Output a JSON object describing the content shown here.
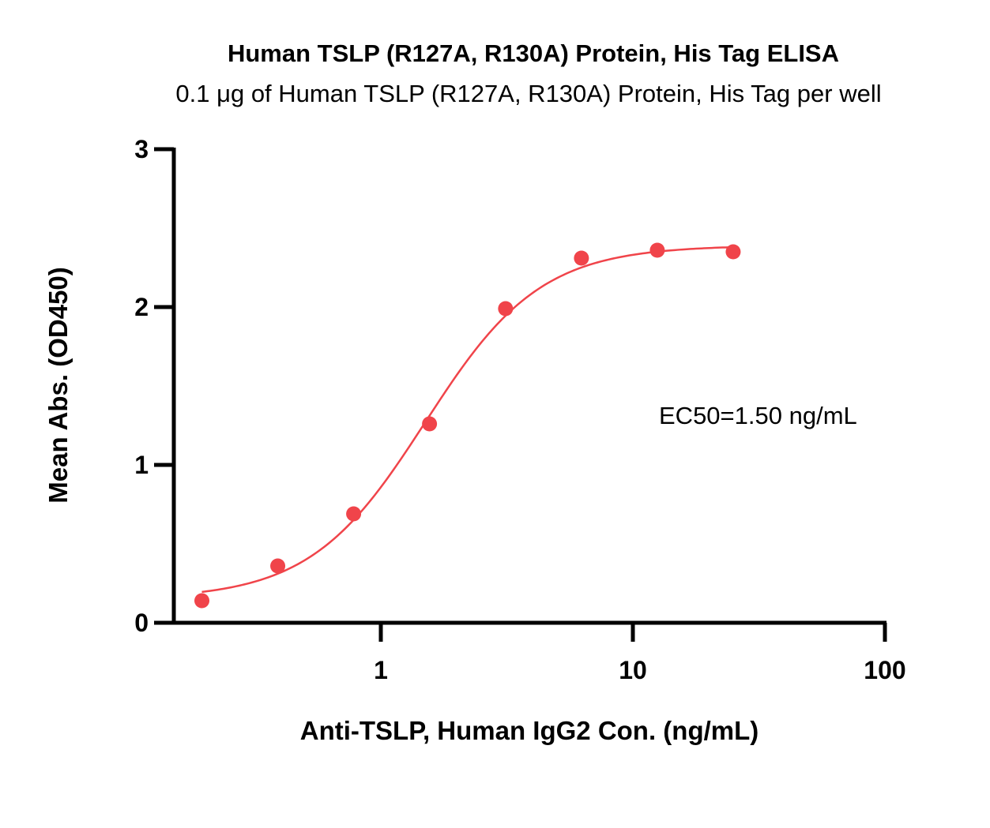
{
  "chart_data": {
    "type": "scatter",
    "title": "Human TSLP (R127A, R130A) Protein, His Tag  ELISA",
    "subtitle": "0.1 μg of Human TSLP (R127A, R130A) Protein, His Tag   per well",
    "xlabel": "Anti-TSLP, Human IgG2 Con. (ng/mL)",
    "ylabel": "Mean Abs. (OD450)",
    "xscale": "log",
    "xlim": [
      0.15,
      100
    ],
    "ylim": [
      0,
      3
    ],
    "x_ticks": [
      {
        "value": 1,
        "label": "1"
      },
      {
        "value": 10,
        "label": "10"
      },
      {
        "value": 100,
        "label": "100"
      }
    ],
    "y_ticks": [
      {
        "value": 0,
        "label": "0"
      },
      {
        "value": 1,
        "label": "1"
      },
      {
        "value": 2,
        "label": "2"
      },
      {
        "value": 3,
        "label": "3"
      }
    ],
    "series": [
      {
        "color": "#f0444a",
        "x": [
          0.195,
          0.39,
          0.78,
          1.56,
          3.125,
          6.25,
          12.5,
          25
        ],
        "y": [
          0.14,
          0.36,
          0.69,
          1.26,
          1.99,
          2.31,
          2.36,
          2.35
        ],
        "fit": {
          "model": "4PL",
          "bottom": 0.15,
          "top": 2.39,
          "ec50": 1.5,
          "hill": 1.9,
          "x_range": [
            0.195,
            25
          ]
        }
      }
    ],
    "annotations": [
      {
        "text": "EC50=1.50 ng/mL"
      }
    ],
    "grid": false,
    "legend": "none"
  }
}
